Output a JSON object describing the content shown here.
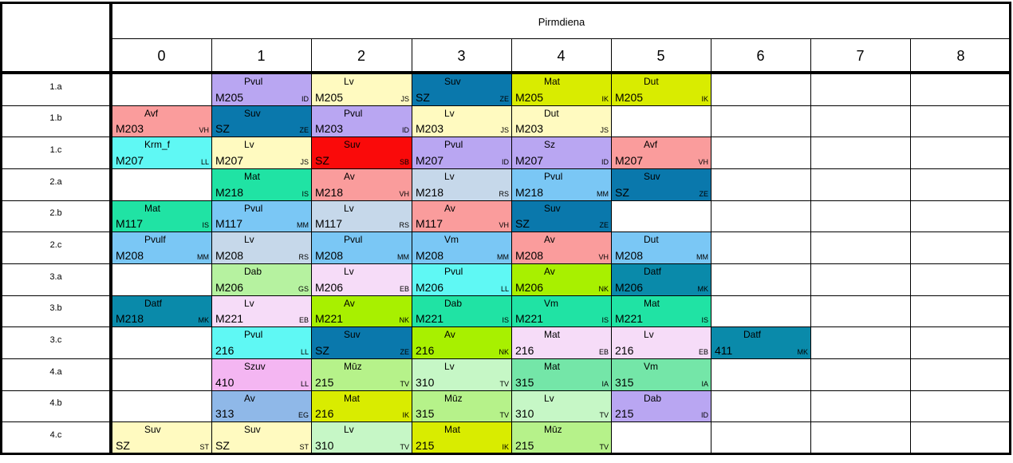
{
  "day": "Pirmdiena",
  "periods": [
    "0",
    "1",
    "2",
    "3",
    "4",
    "5",
    "6",
    "7",
    "8"
  ],
  "rows": [
    {
      "label": "1.a",
      "lessons": [
        null,
        {
          "room": "M205",
          "subject": "Pvul",
          "teacher": "ID",
          "color": "#b9a6f2"
        },
        {
          "room": "M205",
          "subject": "Lv",
          "teacher": "JS",
          "color": "#fffac0"
        },
        {
          "room": "SZ",
          "subject": "Suv",
          "teacher": "ZE",
          "color": "#0a78ac"
        },
        {
          "room": "M205",
          "subject": "Mat",
          "teacher": "IK",
          "color": "#d9ec00"
        },
        {
          "room": "M205",
          "subject": "Dut",
          "teacher": "IK",
          "color": "#d9ec00"
        },
        null,
        null,
        null
      ]
    },
    {
      "label": "1.b",
      "lessons": [
        {
          "room": "M203",
          "subject": "Avf",
          "teacher": "VH",
          "color": "#fa9c9c"
        },
        {
          "room": "SZ",
          "subject": "Suv",
          "teacher": "ZE",
          "color": "#0a78ac"
        },
        {
          "room": "M203",
          "subject": "Pvul",
          "teacher": "ID",
          "color": "#b9a6f2"
        },
        {
          "room": "M203",
          "subject": "Lv",
          "teacher": "JS",
          "color": "#fffac0"
        },
        {
          "room": "M203",
          "subject": "Dut",
          "teacher": "JS",
          "color": "#fffac0"
        },
        null,
        null,
        null,
        null
      ]
    },
    {
      "label": "1.c",
      "lessons": [
        {
          "room": "M207",
          "subject": "Krm_f",
          "teacher": "LL",
          "color": "#5ff8f4"
        },
        {
          "room": "M207",
          "subject": "Lv",
          "teacher": "JS",
          "color": "#fffac0"
        },
        {
          "room": "SZ",
          "subject": "Suv",
          "teacher": "SB",
          "color": "#fa0a0a"
        },
        {
          "room": "M207",
          "subject": "Pvul",
          "teacher": "ID",
          "color": "#b9a6f2"
        },
        {
          "room": "M207",
          "subject": "Sz",
          "teacher": "ID",
          "color": "#b9a6f2"
        },
        {
          "room": "M207",
          "subject": "Avf",
          "teacher": "VH",
          "color": "#fa9c9c"
        },
        null,
        null,
        null
      ]
    },
    {
      "label": "2.a",
      "lessons": [
        null,
        {
          "room": "M218",
          "subject": "Mat",
          "teacher": "IS",
          "color": "#20e3a4"
        },
        {
          "room": "M218",
          "subject": "Av",
          "teacher": "VH",
          "color": "#fa9c9c"
        },
        {
          "room": "M218",
          "subject": "Lv",
          "teacher": "RS",
          "color": "#c6d8ea"
        },
        {
          "room": "M218",
          "subject": "Pvul",
          "teacher": "MM",
          "color": "#7ac7f5"
        },
        {
          "room": "SZ",
          "subject": "Suv",
          "teacher": "ZE",
          "color": "#0a78ac"
        },
        null,
        null,
        null
      ]
    },
    {
      "label": "2.b",
      "lessons": [
        {
          "room": "M117",
          "subject": "Mat",
          "teacher": "IS",
          "color": "#20e3a4"
        },
        {
          "room": "M117",
          "subject": "Pvul",
          "teacher": "MM",
          "color": "#7ac7f5"
        },
        {
          "room": "M117",
          "subject": "Lv",
          "teacher": "RS",
          "color": "#c6d8ea"
        },
        {
          "room": "M117",
          "subject": "Av",
          "teacher": "VH",
          "color": "#fa9c9c"
        },
        {
          "room": "SZ",
          "subject": "Suv",
          "teacher": "ZE",
          "color": "#0a78ac"
        },
        null,
        null,
        null,
        null
      ]
    },
    {
      "label": "2.c",
      "lessons": [
        {
          "room": "M208",
          "subject": "Pvulf",
          "teacher": "MM",
          "color": "#7ac7f5"
        },
        {
          "room": "M208",
          "subject": "Lv",
          "teacher": "RS",
          "color": "#c6d8ea"
        },
        {
          "room": "M208",
          "subject": "Pvul",
          "teacher": "MM",
          "color": "#7ac7f5"
        },
        {
          "room": "M208",
          "subject": "Vm",
          "teacher": "MM",
          "color": "#7ac7f5"
        },
        {
          "room": "M208",
          "subject": "Av",
          "teacher": "VH",
          "color": "#fa9c9c"
        },
        {
          "room": "M208",
          "subject": "Dut",
          "teacher": "MM",
          "color": "#7ac7f5"
        },
        null,
        null,
        null
      ]
    },
    {
      "label": "3.a",
      "lessons": [
        null,
        {
          "room": "M206",
          "subject": "Dab",
          "teacher": "GS",
          "color": "#b6f2a0"
        },
        {
          "room": "M206",
          "subject": "Lv",
          "teacher": "EB",
          "color": "#f6dcf8"
        },
        {
          "room": "M206",
          "subject": "Pvul",
          "teacher": "LL",
          "color": "#5ff8f4"
        },
        {
          "room": "M206",
          "subject": "Av",
          "teacher": "NK",
          "color": "#a8f000"
        },
        {
          "room": "M206",
          "subject": "Datf",
          "teacher": "MK",
          "color": "#0a8aaa"
        },
        null,
        null,
        null
      ]
    },
    {
      "label": "3.b",
      "lessons": [
        {
          "room": "M218",
          "subject": "Datf",
          "teacher": "MK",
          "color": "#0a8aaa"
        },
        {
          "room": "M221",
          "subject": "Lv",
          "teacher": "EB",
          "color": "#f6dcf8"
        },
        {
          "room": "M221",
          "subject": "Av",
          "teacher": "NK",
          "color": "#a8f000"
        },
        {
          "room": "M221",
          "subject": "Dab",
          "teacher": "IS",
          "color": "#20e3a4"
        },
        {
          "room": "M221",
          "subject": "Vm",
          "teacher": "IS",
          "color": "#20e3a4"
        },
        {
          "room": "M221",
          "subject": "Mat",
          "teacher": "IS",
          "color": "#20e3a4"
        },
        null,
        null,
        null
      ]
    },
    {
      "label": "3.c",
      "lessons": [
        null,
        {
          "room": "216",
          "subject": "Pvul",
          "teacher": "LL",
          "color": "#5ff8f4"
        },
        {
          "room": "SZ",
          "subject": "Suv",
          "teacher": "ZE",
          "color": "#0a78ac"
        },
        {
          "room": "216",
          "subject": "Av",
          "teacher": "NK",
          "color": "#a8f000"
        },
        {
          "room": "216",
          "subject": "Mat",
          "teacher": "EB",
          "color": "#f6dcf8"
        },
        {
          "room": "216",
          "subject": "Lv",
          "teacher": "EB",
          "color": "#f6dcf8"
        },
        {
          "room": "411",
          "subject": "Datf",
          "teacher": "MK",
          "color": "#0a8aaa"
        },
        null,
        null
      ]
    },
    {
      "label": "4.a",
      "lessons": [
        null,
        {
          "room": "410",
          "subject": "Szuv",
          "teacher": "LL",
          "color": "#f4b6f2"
        },
        {
          "room": "215",
          "subject": "Mūz",
          "teacher": "TV",
          "color": "#b6f28a"
        },
        {
          "room": "310",
          "subject": "Lv",
          "teacher": "TV",
          "color": "#c6f7c6"
        },
        {
          "room": "315",
          "subject": "Mat",
          "teacher": "IA",
          "color": "#74e6a8"
        },
        {
          "room": "315",
          "subject": "Vm",
          "teacher": "IA",
          "color": "#74e6a8"
        },
        null,
        null,
        null
      ]
    },
    {
      "label": "4.b",
      "lessons": [
        null,
        {
          "room": "313",
          "subject": "Av",
          "teacher": "EG",
          "color": "#8fb8e8"
        },
        {
          "room": "216",
          "subject": "Mat",
          "teacher": "IK",
          "color": "#d9ec00"
        },
        {
          "room": "315",
          "subject": "Mūz",
          "teacher": "TV",
          "color": "#b6f28a"
        },
        {
          "room": "310",
          "subject": "Lv",
          "teacher": "TV",
          "color": "#c6f7c6"
        },
        {
          "room": "215",
          "subject": "Dab",
          "teacher": "ID",
          "color": "#b9a6f2"
        },
        null,
        null,
        null
      ]
    },
    {
      "label": "4.c",
      "lessons": [
        {
          "room": "SZ",
          "subject": "Suv",
          "teacher": "ST",
          "color": "#fffac0"
        },
        {
          "room": "SZ",
          "subject": "Suv",
          "teacher": "ST",
          "color": "#fffac0"
        },
        {
          "room": "310",
          "subject": "Lv",
          "teacher": "TV",
          "color": "#c6f7c6"
        },
        {
          "room": "215",
          "subject": "Mat",
          "teacher": "IK",
          "color": "#d9ec00"
        },
        {
          "room": "215",
          "subject": "Mūz",
          "teacher": "TV",
          "color": "#b6f28a"
        },
        null,
        null,
        null,
        null
      ]
    }
  ]
}
